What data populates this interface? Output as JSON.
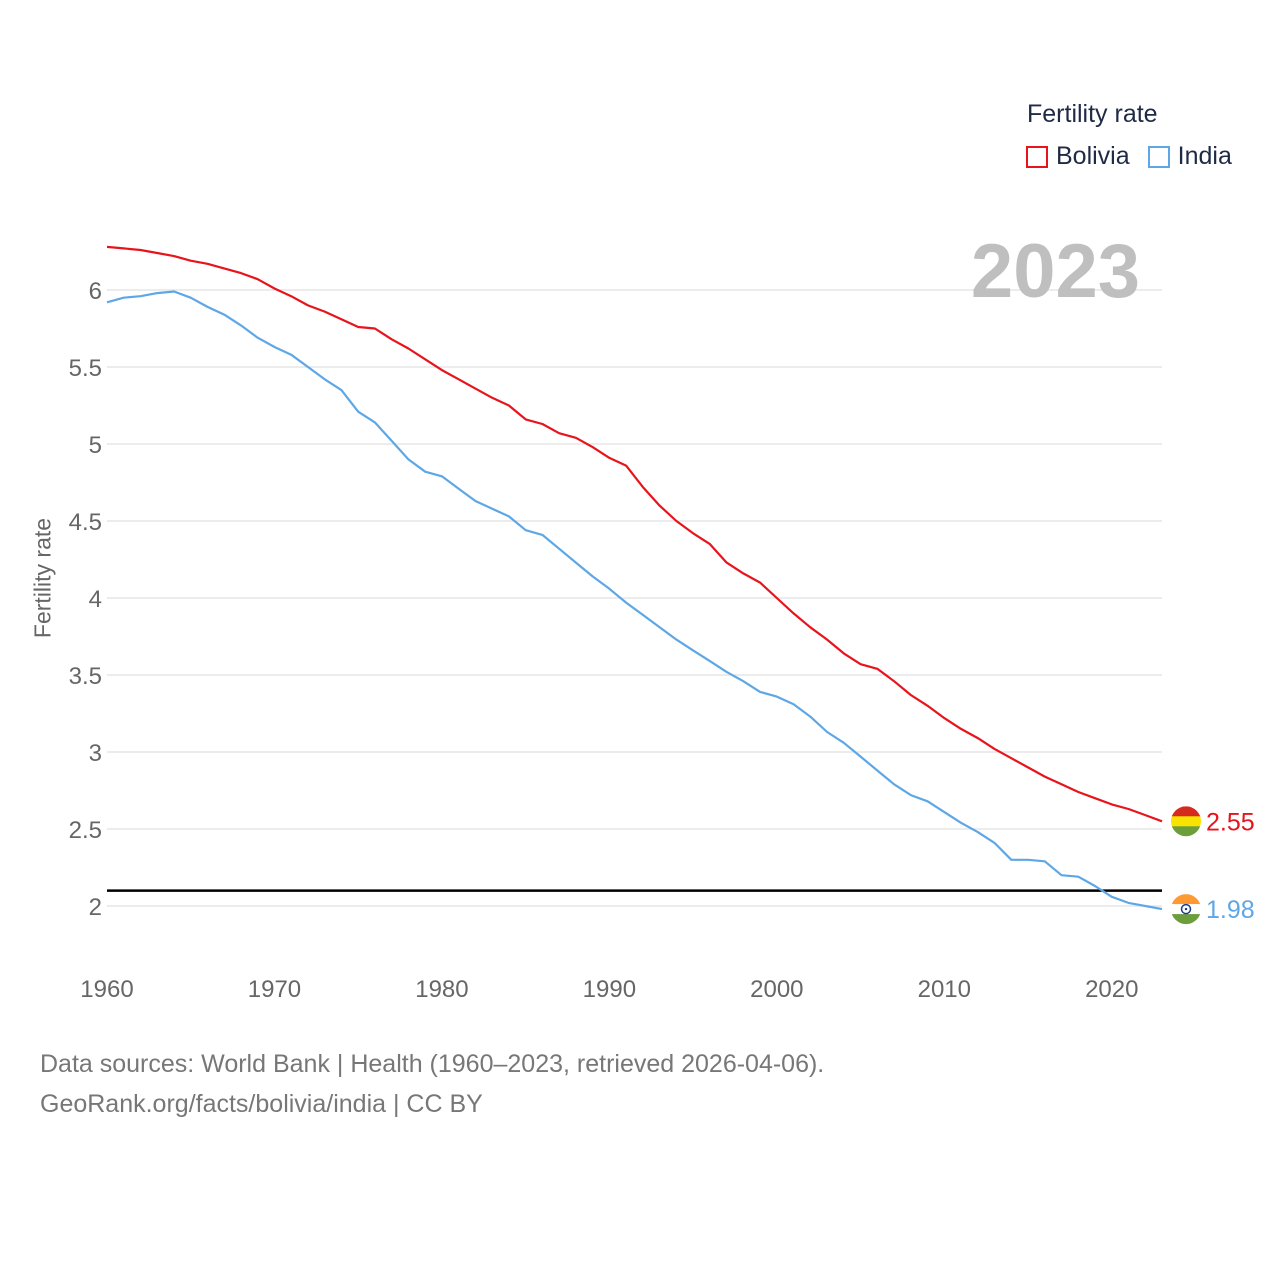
{
  "legend": {
    "title": "Fertility rate",
    "items": [
      {
        "label": "Bolivia",
        "color": "#e8141c"
      },
      {
        "label": "India",
        "color": "#5ea7e6"
      }
    ]
  },
  "year_label": "2023",
  "footer": {
    "line1": "Data sources: World Bank | Health (1960–2023, retrieved 2026-04-06).",
    "line2": "GeoRank.org/facts/bolivia/india | CC BY"
  },
  "chart_data": {
    "type": "line",
    "title": "Fertility rate",
    "xlabel": "",
    "ylabel": "Fertility rate",
    "xlim": [
      1960,
      2023
    ],
    "ylim": [
      1.7,
      6.4
    ],
    "x_ticks": [
      1960,
      1970,
      1980,
      1990,
      2000,
      2010,
      2020
    ],
    "y_ticks": [
      2,
      2.5,
      3,
      3.5,
      4,
      4.5,
      5,
      5.5,
      6
    ],
    "y_tick_labels": [
      "2",
      "2.5",
      "3",
      "3.5",
      "4",
      "4.5",
      "5",
      "5.5",
      "6"
    ],
    "reference_line": {
      "y": 2.1,
      "color": "#000000"
    },
    "x": [
      1960,
      1961,
      1962,
      1963,
      1964,
      1965,
      1966,
      1967,
      1968,
      1969,
      1970,
      1971,
      1972,
      1973,
      1974,
      1975,
      1976,
      1977,
      1978,
      1979,
      1980,
      1981,
      1982,
      1983,
      1984,
      1985,
      1986,
      1987,
      1988,
      1989,
      1990,
      1991,
      1992,
      1993,
      1994,
      1995,
      1996,
      1997,
      1998,
      1999,
      2000,
      2001,
      2002,
      2003,
      2004,
      2005,
      2006,
      2007,
      2008,
      2009,
      2010,
      2011,
      2012,
      2013,
      2014,
      2015,
      2016,
      2017,
      2018,
      2019,
      2020,
      2021,
      2022,
      2023
    ],
    "series": [
      {
        "name": "Bolivia",
        "color": "#e8141c",
        "end_label": "2.55",
        "flag": "bolivia",
        "values": [
          6.28,
          6.27,
          6.26,
          6.24,
          6.22,
          6.19,
          6.17,
          6.14,
          6.11,
          6.07,
          6.01,
          5.96,
          5.9,
          5.86,
          5.81,
          5.76,
          5.75,
          5.68,
          5.62,
          5.55,
          5.48,
          5.42,
          5.36,
          5.3,
          5.25,
          5.16,
          5.13,
          5.07,
          5.04,
          4.98,
          4.91,
          4.86,
          4.72,
          4.6,
          4.5,
          4.42,
          4.35,
          4.23,
          4.16,
          4.1,
          4.0,
          3.9,
          3.81,
          3.73,
          3.64,
          3.57,
          3.54,
          3.46,
          3.37,
          3.3,
          3.22,
          3.15,
          3.09,
          3.02,
          2.96,
          2.9,
          2.84,
          2.79,
          2.74,
          2.7,
          2.66,
          2.63,
          2.59,
          2.55
        ]
      },
      {
        "name": "India",
        "color": "#5ea7e6",
        "end_label": "1.98",
        "flag": "india",
        "values": [
          5.92,
          5.95,
          5.96,
          5.98,
          5.99,
          5.95,
          5.89,
          5.84,
          5.77,
          5.69,
          5.63,
          5.58,
          5.5,
          5.42,
          5.35,
          5.21,
          5.14,
          5.02,
          4.9,
          4.82,
          4.79,
          4.71,
          4.63,
          4.58,
          4.53,
          4.44,
          4.41,
          4.32,
          4.23,
          4.14,
          4.06,
          3.97,
          3.89,
          3.81,
          3.73,
          3.66,
          3.59,
          3.52,
          3.46,
          3.39,
          3.36,
          3.31,
          3.23,
          3.13,
          3.06,
          2.97,
          2.88,
          2.79,
          2.72,
          2.68,
          2.61,
          2.54,
          2.48,
          2.41,
          2.3,
          2.3,
          2.29,
          2.2,
          2.19,
          2.13,
          2.06,
          2.02,
          2.0,
          1.98
        ]
      }
    ]
  }
}
